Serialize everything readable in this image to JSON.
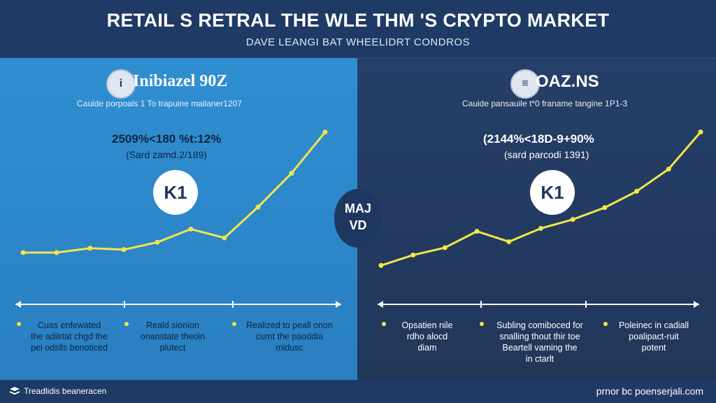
{
  "header": {
    "title": "RETAIL S RETRAL THE WLE THM 'S CRYPTO MARKET",
    "subtitle": "DAVE LEANGI BAT WHEELIDRT CONDROS"
  },
  "left_panel": {
    "logo_glyph": "i",
    "brand": "Inibiazel 90Z",
    "caption": "Cauide porpoals 1 To trapuine mailaner1207",
    "stat": "2509%<180 %t:12%",
    "period": "(Sard zamd.2/189)",
    "badge": "K1",
    "bullets": [
      "Cuas enfewated\nthe adilrtat chgd the\npei odslls benoticed",
      "Reald sionion\nonanstate theoin\nplutect",
      "Realized to peall onon\ncumt the paoddia\nmidusc"
    ],
    "accent": "#f1e64a",
    "background": "#2f8fd1"
  },
  "right_panel": {
    "logo_glyph": "≡",
    "brand": "OAZ.NS",
    "caption": "Cauide pansauile t*0 franame tangine 1P1-3",
    "stat": "(2144%<18D-9+90%",
    "period": "(sard parcodi 1391)",
    "badge": "K1",
    "bullets": [
      "Opsatien nile\nrdho alocd\ndiam",
      "Subling comiboced for\nsnalling thout thir toe\nBeartell vaming the\nin ctarlt",
      "Poleinec in cadiall\npoalipact-ruit\npotent"
    ],
    "accent": "#f1e64a",
    "background": "#263f68"
  },
  "center_badge": {
    "line1": "MAJ",
    "line2": "VD"
  },
  "footer": {
    "left": "Treadlidis beaneracen",
    "right": "prnor bc poenserjali.com"
  },
  "chart_data": [
    {
      "type": "line",
      "title": "",
      "xlabel": "",
      "ylabel": "",
      "x": [
        0,
        1,
        2,
        3,
        4,
        5,
        6,
        7,
        8,
        9
      ],
      "series": [
        {
          "values": [
            10,
            10,
            13,
            12,
            17,
            26,
            20,
            41,
            64,
            92
          ]
        }
      ],
      "xlim": [
        0,
        9
      ],
      "ylim": [
        0,
        100
      ],
      "grid": false,
      "color": "#f1e64a"
    },
    {
      "type": "line",
      "title": "",
      "xlabel": "",
      "ylabel": "",
      "x": [
        0,
        1,
        2,
        3,
        4,
        5,
        6,
        7,
        8,
        9,
        10
      ],
      "series": [
        {
          "values": [
            5,
            12,
            17,
            28,
            21,
            30,
            36,
            44,
            55,
            70,
            95
          ]
        }
      ],
      "xlim": [
        0,
        10
      ],
      "ylim": [
        0,
        100
      ],
      "grid": false,
      "color": "#f1e64a"
    }
  ]
}
